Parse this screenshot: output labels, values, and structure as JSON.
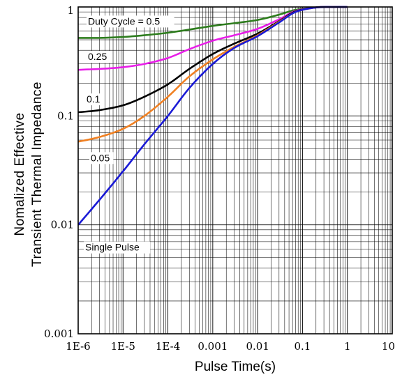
{
  "chart_data": {
    "type": "line",
    "xlabel": "Pulse Time(s)",
    "ylabel_line1": "Nomalized Effective",
    "ylabel_line2": "Transient Thermal Impedance",
    "x_scale": "log",
    "y_scale": "log",
    "xlim": [
      1e-06,
      10
    ],
    "ylim": [
      0.001,
      1
    ],
    "grid": true,
    "x_ticks": [
      {
        "value": 1e-06,
        "label": "1E-6"
      },
      {
        "value": 1e-05,
        "label": "1E-5"
      },
      {
        "value": 0.0001,
        "label": "1E-4"
      },
      {
        "value": 0.001,
        "label": "0.001"
      },
      {
        "value": 0.01,
        "label": "0.01"
      },
      {
        "value": 0.1,
        "label": "0.1"
      },
      {
        "value": 1,
        "label": "1"
      },
      {
        "value": 10,
        "label": "10"
      }
    ],
    "y_ticks": [
      {
        "value": 1,
        "label": "1"
      },
      {
        "value": 0.1,
        "label": "0.1"
      },
      {
        "value": 0.01,
        "label": "0.01"
      },
      {
        "value": 0.001,
        "label": "0.001"
      }
    ],
    "series": [
      {
        "name": "Duty Cycle = 0.5",
        "color": "#2e7d1e",
        "points": [
          [
            1e-06,
            0.52
          ],
          [
            3e-06,
            0.52
          ],
          [
            1e-05,
            0.53
          ],
          [
            3e-05,
            0.55
          ],
          [
            0.0001,
            0.58
          ],
          [
            0.0003,
            0.62
          ],
          [
            0.001,
            0.67
          ],
          [
            0.003,
            0.71
          ],
          [
            0.01,
            0.76
          ],
          [
            0.03,
            0.85
          ],
          [
            0.07,
            0.94
          ],
          [
            0.2,
            0.99
          ],
          [
            0.5,
            1.0
          ],
          [
            1,
            1.0
          ]
        ]
      },
      {
        "name": "0.25",
        "color": "#e81ee8",
        "points": [
          [
            1e-06,
            0.265
          ],
          [
            3e-06,
            0.27
          ],
          [
            1e-05,
            0.28
          ],
          [
            3e-05,
            0.3
          ],
          [
            0.0001,
            0.34
          ],
          [
            0.0003,
            0.41
          ],
          [
            0.001,
            0.49
          ],
          [
            0.003,
            0.55
          ],
          [
            0.01,
            0.63
          ],
          [
            0.03,
            0.77
          ],
          [
            0.07,
            0.92
          ],
          [
            0.2,
            0.99
          ],
          [
            0.5,
            1.0
          ],
          [
            1,
            1.0
          ]
        ]
      },
      {
        "name": "0.1",
        "color": "#000000",
        "points": [
          [
            1e-06,
            0.108
          ],
          [
            3e-06,
            0.113
          ],
          [
            1e-05,
            0.125
          ],
          [
            3e-05,
            0.15
          ],
          [
            0.0001,
            0.195
          ],
          [
            0.0003,
            0.27
          ],
          [
            0.001,
            0.37
          ],
          [
            0.003,
            0.46
          ],
          [
            0.01,
            0.57
          ],
          [
            0.03,
            0.74
          ],
          [
            0.07,
            0.91
          ],
          [
            0.2,
            0.99
          ],
          [
            0.5,
            1.0
          ],
          [
            1,
            1.0
          ]
        ]
      },
      {
        "name": "0.05",
        "color": "#f08022",
        "points": [
          [
            1e-06,
            0.058
          ],
          [
            3e-06,
            0.064
          ],
          [
            1e-05,
            0.076
          ],
          [
            3e-05,
            0.1
          ],
          [
            0.0001,
            0.15
          ],
          [
            0.0003,
            0.23
          ],
          [
            0.001,
            0.33
          ],
          [
            0.003,
            0.43
          ],
          [
            0.01,
            0.55
          ],
          [
            0.03,
            0.73
          ],
          [
            0.07,
            0.9
          ],
          [
            0.2,
            0.99
          ],
          [
            0.5,
            1.0
          ],
          [
            1,
            1.0
          ]
        ]
      },
      {
        "name": "Single Pulse",
        "color": "#1a1ad6",
        "points": [
          [
            1e-06,
            0.01
          ],
          [
            3e-06,
            0.017
          ],
          [
            1e-05,
            0.031
          ],
          [
            3e-05,
            0.055
          ],
          [
            0.0001,
            0.1
          ],
          [
            0.0003,
            0.18
          ],
          [
            0.001,
            0.3
          ],
          [
            0.003,
            0.42
          ],
          [
            0.01,
            0.54
          ],
          [
            0.03,
            0.72
          ],
          [
            0.07,
            0.9
          ],
          [
            0.2,
            0.99
          ],
          [
            0.5,
            1.0
          ],
          [
            1,
            1.0
          ]
        ]
      }
    ]
  }
}
